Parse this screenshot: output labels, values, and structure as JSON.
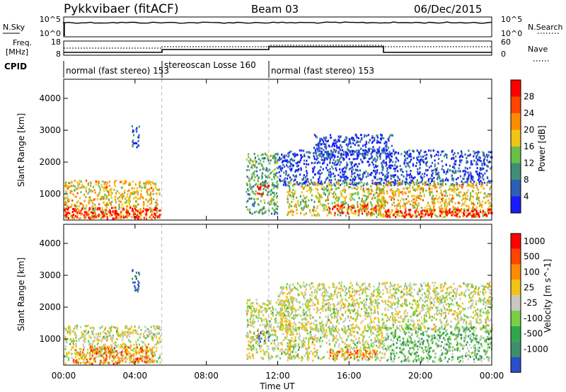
{
  "header": {
    "station": "Pykkvibaer (fitACF)",
    "beam": "Beam 03",
    "date": "06/Dec/2015"
  },
  "nsky_panel": {
    "left_label": "N.Sky",
    "right_label": "N.Search",
    "left_ticks": [
      "10^5",
      "10^0"
    ],
    "right_ticks": [
      "10^5",
      "10^0"
    ]
  },
  "freq_panel": {
    "left_label_line1": "Freq.",
    "left_label_line2": "[MHz]",
    "right_label": "Nave",
    "left_ticks": [
      "18",
      "8"
    ],
    "right_ticks": [
      "60",
      "0"
    ]
  },
  "cpid": {
    "label": "CPID",
    "segments": [
      {
        "name": "normal (fast stereo) 153",
        "start_hour": 0.0,
        "end_hour": 5.5
      },
      {
        "name": "stereoscan Losse 160",
        "start_hour": 5.5,
        "end_hour": 11.5
      },
      {
        "name": "normal (fast stereo) 153",
        "start_hour": 11.5,
        "end_hour": 24.0
      }
    ]
  },
  "x_axis": {
    "label": "Time UT",
    "ticks": [
      "00:00",
      "04:00",
      "08:00",
      "12:00",
      "16:00",
      "20:00",
      "00:00"
    ],
    "tick_hours": [
      0,
      4,
      8,
      12,
      16,
      20,
      24
    ],
    "range_hours": [
      0,
      24
    ]
  },
  "chart_data": [
    {
      "type": "heatmap",
      "name": "power-panel",
      "ylabel": "Slant Range [km]",
      "y_ticks": [
        1000,
        2000,
        3000,
        4000
      ],
      "ylim": [
        180,
        4600
      ],
      "xlim_hours": [
        0,
        24
      ],
      "colorbar_label": "Power [dB]",
      "colorbar_ticks": [
        "4",
        "8",
        "12",
        "16",
        "20",
        "24",
        "28"
      ],
      "colors": [
        "#1a1aff",
        "#2d5fb8",
        "#3f8f78",
        "#6abf49",
        "#f2c417",
        "#ff8c00",
        "#ff4500",
        "#ff0000"
      ],
      "cpid_change_hours": [
        5.5,
        11.5
      ],
      "scatter_regions": [
        {
          "hour_start": 0.0,
          "hour_end": 5.4,
          "range_low": 250,
          "range_high": 1450,
          "level": 0.6
        },
        {
          "hour_start": 0.0,
          "hour_end": 5.4,
          "range_low": 250,
          "range_high": 600,
          "level": 0.95
        },
        {
          "hour_start": 3.8,
          "hour_end": 4.2,
          "range_low": 2500,
          "range_high": 3200,
          "level": 0.2
        },
        {
          "hour_start": 10.2,
          "hour_end": 12.0,
          "range_low": 400,
          "range_high": 2300,
          "level": 0.35
        },
        {
          "hour_start": 10.8,
          "hour_end": 11.5,
          "range_low": 1000,
          "range_high": 1300,
          "level": 0.95
        },
        {
          "hour_start": 12.0,
          "hour_end": 24.0,
          "range_low": 1300,
          "range_high": 2400,
          "level": 0.15
        },
        {
          "hour_start": 14.0,
          "hour_end": 18.5,
          "range_low": 2200,
          "range_high": 2900,
          "level": 0.15
        },
        {
          "hour_start": 12.5,
          "hour_end": 18.0,
          "range_low": 350,
          "range_high": 1400,
          "level": 0.5
        },
        {
          "hour_start": 14.8,
          "hour_end": 17.5,
          "range_low": 400,
          "range_high": 700,
          "level": 0.88
        },
        {
          "hour_start": 17.5,
          "hour_end": 24.0,
          "range_low": 300,
          "range_high": 1400,
          "level": 0.6
        },
        {
          "hour_start": 18.0,
          "hour_end": 24.0,
          "range_low": 300,
          "range_high": 550,
          "level": 0.98
        }
      ]
    },
    {
      "type": "heatmap",
      "name": "velocity-panel",
      "ylabel": "Slant Range [km]",
      "y_ticks": [
        1000,
        2000,
        3000,
        4000
      ],
      "ylim": [
        180,
        4600
      ],
      "xlim_hours": [
        0,
        24
      ],
      "colorbar_label": "Velocity [m s^-1]",
      "colorbar_ticks": [
        "1000",
        "500",
        "100",
        "25",
        "-25",
        "-100",
        "-500",
        "-1000"
      ],
      "colors": [
        "#2b4fc8",
        "#3f8f6a",
        "#2fa84a",
        "#79cf44",
        "#c8c8c0",
        "#f2c417",
        "#ff8c00",
        "#ff4500",
        "#ff0000"
      ],
      "cpid_change_hours": [
        5.5,
        11.5
      ],
      "scatter_regions": [
        {
          "hour_start": 0.0,
          "hour_end": 5.4,
          "range_low": 250,
          "range_high": 1450,
          "level": 0.5
        },
        {
          "hour_start": 0.5,
          "hour_end": 5.0,
          "range_low": 250,
          "range_high": 800,
          "level": 0.75
        },
        {
          "hour_start": 3.8,
          "hour_end": 4.2,
          "range_low": 2500,
          "range_high": 3200,
          "level": 0.1
        },
        {
          "hour_start": 10.8,
          "hour_end": 11.5,
          "range_low": 900,
          "range_high": 1300,
          "level": 0.05
        },
        {
          "hour_start": 10.2,
          "hour_end": 13.0,
          "range_low": 400,
          "range_high": 2300,
          "level": 0.5
        },
        {
          "hour_start": 12.0,
          "hour_end": 24.0,
          "range_low": 1300,
          "range_high": 2800,
          "level": 0.5
        },
        {
          "hour_start": 12.5,
          "hour_end": 18.0,
          "range_low": 350,
          "range_high": 1400,
          "level": 0.5
        },
        {
          "hour_start": 14.8,
          "hour_end": 17.5,
          "range_low": 400,
          "range_high": 700,
          "level": 0.72
        },
        {
          "hour_start": 18.0,
          "hour_end": 24.0,
          "range_low": 300,
          "range_high": 1400,
          "level": 0.35
        }
      ]
    }
  ]
}
